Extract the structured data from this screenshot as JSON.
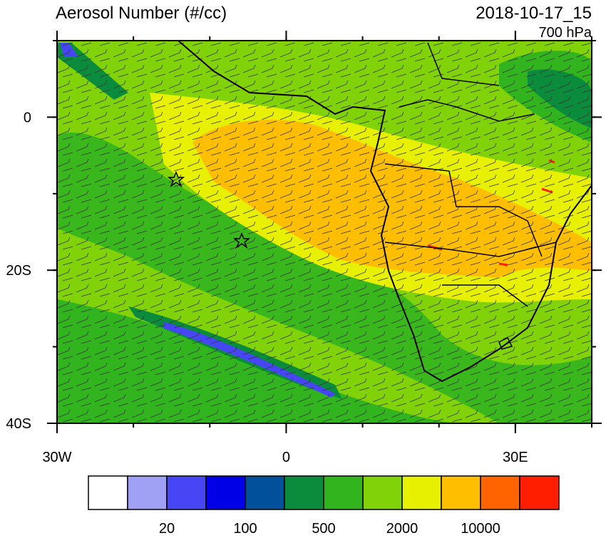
{
  "header": {
    "title": "Aerosol Number (#/cc)",
    "time": "2018-10-17_15",
    "level": "700 hPa"
  },
  "map": {
    "lonlim": [
      -30,
      40
    ],
    "latlim": [
      -40,
      10
    ],
    "lonticks": [
      {
        "value": -30,
        "label": "30W"
      },
      0,
      {
        "value": 30,
        "label": "30E"
      }
    ],
    "latticks": [
      0,
      {
        "value": -20,
        "label": "20S"
      },
      {
        "value": -40,
        "label": "40S"
      }
    ]
  },
  "colorbar": {
    "colors": [
      "#ffffff",
      "#a0a0f5",
      "#4646f5",
      "#0000e6",
      "#00509b",
      "#0a8c3c",
      "#32b41e",
      "#82d20a",
      "#e6f000",
      "#ffbe00",
      "#ff6400",
      "#ff1e00"
    ],
    "labels": [
      20,
      100,
      500,
      2000,
      10000
    ]
  }
}
